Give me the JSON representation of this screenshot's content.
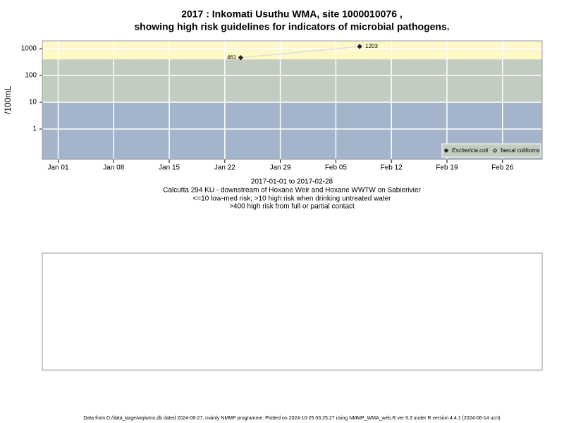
{
  "chart_data": {
    "type": "line",
    "title": "2017 : Inkomati Usuthu WMA, site 1000010076 ,",
    "title_line2": "showing high risk guidelines for indicators of microbial pathogens.",
    "y_label": "/100mL",
    "subtitle": [
      "2017-01-01 to 2017-02-28",
      "Calcutta 294 KU - downstream of Hoxane Weir and Hoxane WWTW on Sabierivier",
      "<=10 low-med risk; >10 high risk when drinking untreated water",
      ">400 high risk from full or partial contact"
    ],
    "footer": "Data from D:/data_large/wq/wms.db dated 2024-08-27, mainly NMMP programme. Plotted on 2024-10-25 03:25:27 using NMMP_WMA_web.R ver 9.3 under R version 4.4.1 (2024-06-14 ucrt)",
    "log_scale": true,
    "grid": true,
    "legend": "bottom-right",
    "ylim": [
      0.074,
      1950
    ],
    "yticks": [
      1,
      10,
      100,
      1000
    ],
    "xlim": [
      "2016-12-30",
      "2017-03-03"
    ],
    "xticks": [
      {
        "value": "2017-01-01",
        "label": "Jan 01"
      },
      {
        "value": "2017-01-08",
        "label": "Jan 08"
      },
      {
        "value": "2017-01-15",
        "label": "Jan 15"
      },
      {
        "value": "2017-01-22",
        "label": "Jan 22"
      },
      {
        "value": "2017-01-29",
        "label": "Jan 29"
      },
      {
        "value": "2017-02-05",
        "label": "Feb 05"
      },
      {
        "value": "2017-02-12",
        "label": "Feb 12"
      },
      {
        "value": "2017-02-19",
        "label": "Feb 19"
      },
      {
        "value": "2017-02-26",
        "label": "Feb 26"
      }
    ],
    "band_thresholds": [
      10,
      400
    ],
    "band_colors": [
      "#a3b4cb",
      "#c3ccc0",
      "#fff9c8"
    ],
    "line_color": "#dddddd",
    "series": [
      {
        "name": "Eschericia coli",
        "color": "#222222",
        "filled": true,
        "x": [
          "2017-01-24",
          "2017-02-08"
        ],
        "values": [
          461,
          1203
        ]
      },
      {
        "name": "faecal coliforms",
        "color": "#222222",
        "filled": false,
        "x": [],
        "values": []
      }
    ]
  }
}
